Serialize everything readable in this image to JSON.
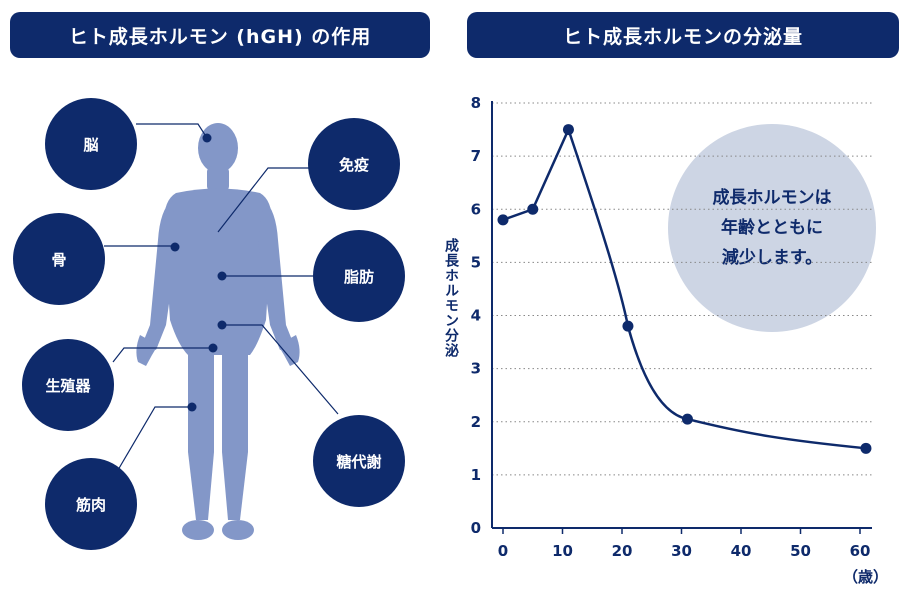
{
  "left_panel": {
    "title": "ヒト成長ホルモン (hGH) の作用",
    "organs": {
      "brain": "脳",
      "bone": "骨",
      "reproductive": "生殖器",
      "muscle": "筋肉",
      "immunity": "免疫",
      "fat": "脂肪",
      "metabolism": "糖代謝"
    }
  },
  "right_panel": {
    "title": "ヒト成長ホルモンの分泌量",
    "callout": [
      "成長ホルモンは",
      "年齢とともに",
      "減少します。"
    ]
  },
  "colors": {
    "navy": "#0e2a6b",
    "body_silhouette": "#8397c8",
    "callout_bubble": "#cdd5e4",
    "grid": "#888888"
  },
  "chart_data": {
    "type": "line",
    "title": "ヒト成長ホルモンの分泌量",
    "xlabel": "（歳）",
    "ylabel": "成長ホルモン分泌",
    "xlim": [
      0,
      60
    ],
    "ylim": [
      0,
      8
    ],
    "x_ticks": [
      0,
      10,
      20,
      30,
      40,
      50,
      60
    ],
    "y_ticks": [
      0,
      1,
      2,
      3,
      4,
      5,
      6,
      7,
      8
    ],
    "grid": "horizontal dotted",
    "series": [
      {
        "x": [
          0,
          5,
          11,
          21,
          31,
          61
        ],
        "y": [
          5.8,
          6.0,
          7.5,
          3.8,
          2.05,
          1.5
        ]
      }
    ]
  }
}
